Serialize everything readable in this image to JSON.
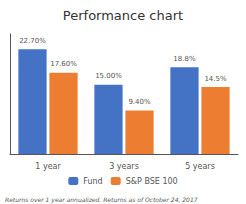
{
  "chart_data": {
    "type": "bar",
    "title": "Performance chart",
    "categories": [
      "1 year",
      "3 years",
      "5 years"
    ],
    "series": [
      {
        "name": "Fund",
        "color": "#4472C4",
        "values": [
          22.7,
          15.0,
          18.8
        ],
        "value_labels": [
          "22.70%",
          "15.00%",
          "18.8%"
        ]
      },
      {
        "name": "S&P BSE 100",
        "color": "#ED7D31",
        "values": [
          17.6,
          9.4,
          14.5
        ],
        "value_labels": [
          "17.60%",
          "9.40%",
          "14.5%"
        ]
      }
    ],
    "ylim": [
      0,
      26
    ],
    "yticks": [],
    "grid": false,
    "tick_labels": "x",
    "data_labels": true,
    "legend": "bottom",
    "footnote": "Returns over 1 year annualized. Returns as of October 24, 2017"
  }
}
